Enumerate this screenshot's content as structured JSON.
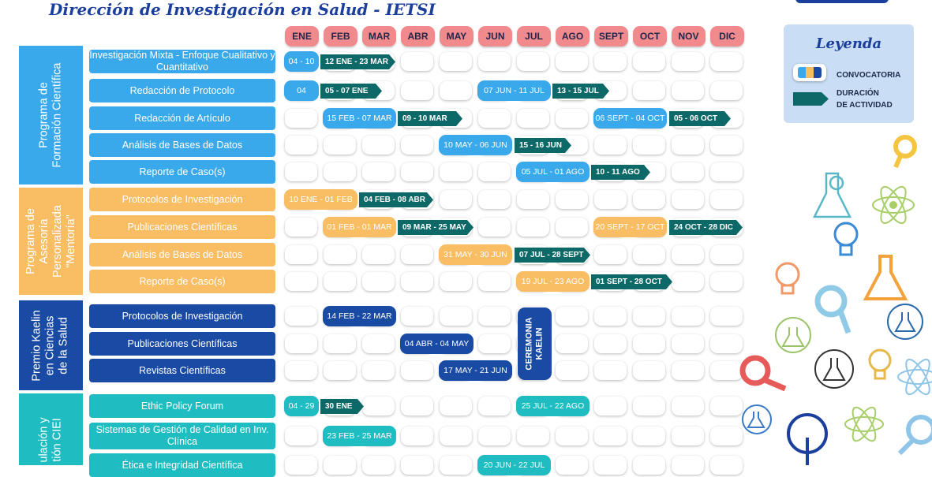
{
  "header": {
    "title": "Dirección de Investigación en Salud - IETSI"
  },
  "months": [
    "ENE",
    "FEB",
    "MAR",
    "ABR",
    "MAY",
    "JUN",
    "JUL",
    "AGO",
    "SEPT",
    "OCT",
    "NOV",
    "DIC"
  ],
  "colors": {
    "header": "#f08a8d",
    "program1": "#3aa9ec",
    "program2": "#f9bd64",
    "program3": "#1a4ba4",
    "program4": "#1fbcc2",
    "arrow": "#0c6968",
    "title": "#1b3f9c",
    "legend_bg": "#c9def4"
  },
  "sections": [
    {
      "label": "Programa de\nFormación Científica"
    },
    {
      "label": "Programa de\nAsesoría\nPersonalizada\n\"Mentoría\""
    },
    {
      "label": "Premio Kaelin\nen Ciencias\nde la Salud"
    },
    {
      "label": "ulación y\ntión CIEI"
    }
  ],
  "rows": [
    {
      "label": "Investigación Mixta - Enfoque Cualitativo y Cuantitativo",
      "convocatoria": "04 - 10",
      "duracion": "12 ENE - 23 MAR"
    },
    {
      "label": "Redacción de Protocolo",
      "convocatoria": "04",
      "duracion": "05 - 07 ENE",
      "convocatoria_2": "07 JUN - 11 JUL",
      "duracion_2": "13 - 15 JUL"
    },
    {
      "label": "Redacción de Artículo",
      "convocatoria": "15 FEB - 07 MAR",
      "duracion": "09 - 10 MAR",
      "convocatoria_2": "06 SEPT - 04 OCT",
      "duracion_2": "05 - 06 OCT"
    },
    {
      "label": "Análisis de Bases de Datos",
      "convocatoria": "10 MAY - 06 JUN",
      "duracion": "15 - 16 JUN"
    },
    {
      "label": "Reporte de Caso(s)",
      "convocatoria": "05 JUL - 01 AGO",
      "duracion": "10 - 11 AGO"
    },
    {
      "label": "Protocolos de Investigación",
      "convocatoria": "10 ENE - 01 FEB",
      "duracion": "04  FEB - 08 ABR"
    },
    {
      "label": "Publicaciones Científicas",
      "convocatoria": "01 FEB - 01 MAR",
      "duracion": "09 MAR - 25 MAY",
      "convocatoria_2": "20 SEPT - 17 OCT",
      "duracion_2": "24 OCT - 28 DIC"
    },
    {
      "label": "Análisis de Bases de Datos",
      "convocatoria": "31 MAY - 30 JUN",
      "duracion": "07 JUL - 28 SEPT"
    },
    {
      "label": "Reporte de Caso(s)",
      "convocatoria": "19 JUL - 23 AGO",
      "duracion": "01 SEPT - 28 OCT"
    },
    {
      "label": "Protocolos de Investigación",
      "convocatoria": "14 FEB - 22 MAR"
    },
    {
      "label": "Publicaciones Científicas",
      "convocatoria": "04 ABR - 04 MAY"
    },
    {
      "label": "Revistas Científicas",
      "convocatoria": "17 MAY - 21 JUN"
    },
    {
      "label": "Ethic Policy Forum",
      "convocatoria": "04 - 29",
      "duracion": "30 ENE",
      "convocatoria_2": "25 JUL - 22 AGO"
    },
    {
      "label": "Sistemas de Gestión de Calidad en Inv. Clínica",
      "convocatoria": "23 FEB - 25 MAR"
    },
    {
      "label": "Ética e Integridad Científica",
      "convocatoria": "20 JUN - 22 JUL"
    }
  ],
  "ceremonia": "CEREMONIA\nKAELIN",
  "legend": {
    "title": "Leyenda",
    "convocatoria": "CONVOCATORIA",
    "duracion": "DURACIÓN\nDE ACTIVIDAD"
  }
}
